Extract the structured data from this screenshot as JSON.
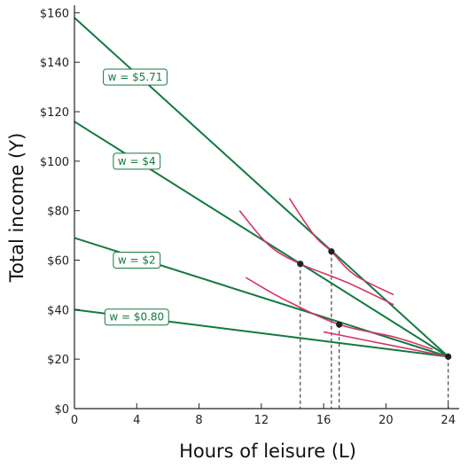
{
  "chart_data": {
    "type": "line",
    "xlabel": "Hours of leisure (L)",
    "ylabel": "Total income (Y)",
    "xlim": [
      0,
      24.7
    ],
    "ylim": [
      0,
      163
    ],
    "x_ticks": [
      0,
      4,
      8,
      12,
      16,
      20,
      24
    ],
    "x_tick_labels": [
      "0",
      "4",
      "8",
      "12",
      "16",
      "20",
      "24"
    ],
    "y_ticks": [
      0,
      20,
      40,
      60,
      80,
      100,
      120,
      140,
      160
    ],
    "y_tick_labels": [
      "$0",
      "$20",
      "$40",
      "$60",
      "$80",
      "$100",
      "$120",
      "$140",
      "$160"
    ],
    "grid": false,
    "colors": {
      "budget_line": "#137a3e",
      "indifference_curve": "#d6336c",
      "point": "#222222",
      "guide": "#222222"
    },
    "budget_lines": [
      {
        "name": "w = $5.71",
        "x": [
          0,
          24
        ],
        "y": [
          158,
          21
        ],
        "label_at": [
          3.9,
          134
        ]
      },
      {
        "name": "w = $4",
        "x": [
          0,
          24
        ],
        "y": [
          116,
          21
        ],
        "label_at": [
          4.0,
          100
        ]
      },
      {
        "name": "w = $2",
        "x": [
          0,
          24
        ],
        "y": [
          69,
          21
        ],
        "label_at": [
          4.0,
          60
        ]
      },
      {
        "name": "w = $0.80",
        "x": [
          0,
          24
        ],
        "y": [
          40,
          21
        ],
        "label_at": [
          4.0,
          37
        ]
      }
    ],
    "indifference_curves": [
      {
        "x": [
          13.8,
          15.4,
          16.5,
          18.0,
          20.5
        ],
        "y": [
          85,
          70,
          63.5,
          54,
          46
        ]
      },
      {
        "x": [
          10.6,
          12.5,
          14.5,
          17.5,
          20.5
        ],
        "y": [
          80,
          66,
          58.5,
          51,
          42
        ]
      },
      {
        "x": [
          11.0,
          13.5,
          17.0,
          20.5,
          23.0
        ],
        "y": [
          53,
          44,
          34,
          29,
          24
        ]
      },
      {
        "x": [
          16.0,
          20.0,
          24.0
        ],
        "y": [
          31,
          26,
          21
        ]
      }
    ],
    "points": [
      {
        "x": 24,
        "y": 21
      },
      {
        "x": 16.5,
        "y": 63.5
      },
      {
        "x": 14.5,
        "y": 58.5
      },
      {
        "x": 17.0,
        "y": 34.0
      }
    ],
    "guides_x": [
      14.5,
      16.5,
      17.0,
      24
    ]
  }
}
